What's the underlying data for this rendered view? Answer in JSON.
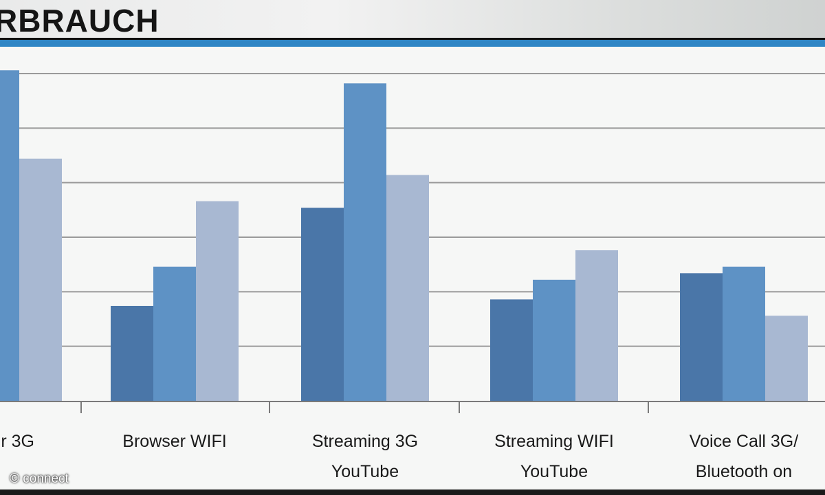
{
  "title": "RBRAUCH",
  "copyright": "© connect",
  "chart_data": {
    "type": "bar",
    "title": "RBRAUCH",
    "xlabel": "",
    "ylabel": "",
    "ylim": [
      0,
      1
    ],
    "grid": true,
    "categories": [
      "r 3G",
      "Browser WIFI",
      "Streaming 3G YouTube",
      "Streaming WIFI YouTube",
      "Voice Call 3G/ Bluetooth on"
    ],
    "category_lines": [
      [
        "r 3G"
      ],
      [
        "Browser WIFI"
      ],
      [
        "Streaming 3G",
        "YouTube"
      ],
      [
        "Streaming WIFI",
        "YouTube"
      ],
      [
        "Voice Call 3G/",
        "Bluetooth on"
      ]
    ],
    "series": [
      {
        "color": "#4a76a8",
        "values": [
          null,
          0.29,
          0.59,
          0.31,
          0.39
        ]
      },
      {
        "color": "#5e92c5",
        "values": [
          1.01,
          0.41,
          0.97,
          0.37,
          0.41
        ]
      },
      {
        "color": "#a8b8d2",
        "values": [
          0.74,
          0.61,
          0.69,
          0.46,
          0.26
        ]
      }
    ]
  }
}
